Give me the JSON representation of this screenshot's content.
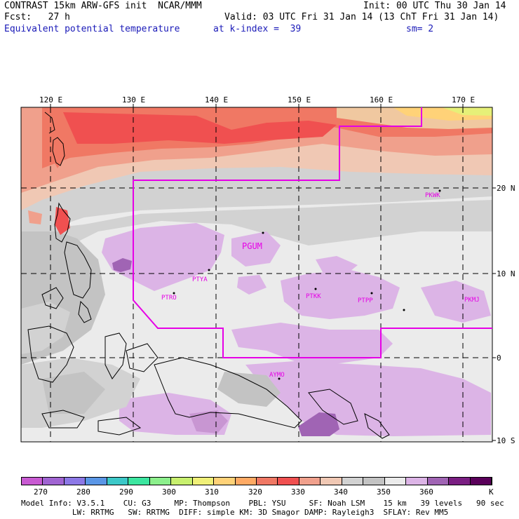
{
  "header": {
    "line1_left": "CONTRAST 15km ARW-GFS init  NCAR/MMM",
    "line1_right": "Init: 00 UTC Thu 30 Jan 14",
    "line2_left": "Fcst:   27 h",
    "line2_right": "Valid: 03 UTC Fri 31 Jan 14 (13 ChT Fri 31 Jan 14)",
    "field_name": "Equivalent potential temperature",
    "level": "at k-index =  39",
    "smoothing": "sm= 2"
  },
  "axes": {
    "lon_labels": [
      "120 E",
      "130 E",
      "140 E",
      "150 E",
      "160 E",
      "170 E"
    ],
    "lat_labels": [
      "20 N",
      "10 N",
      "0",
      "10 S"
    ]
  },
  "stations": [
    "PKWK",
    "PGUM",
    "PTYA",
    "PTRO",
    "PTKK",
    "PTPP",
    "PKMJ",
    "AYMO"
  ],
  "colorbar": {
    "labels": [
      "270",
      "280",
      "290",
      "300",
      "310",
      "320",
      "330",
      "340",
      "350",
      "360"
    ],
    "unit": "K",
    "colors": [
      "#c85ad2",
      "#a064d2",
      "#8c78e6",
      "#5a96e6",
      "#3cc8c8",
      "#3ce6a0",
      "#8cf08c",
      "#c8f06e",
      "#f0f078",
      "#ffd278",
      "#ffaa64",
      "#f07864",
      "#f05050",
      "#f0a08c",
      "#f0c8b4",
      "#d2d2d2",
      "#c3c3c3",
      "#ebebeb",
      "#dcb4e6",
      "#a064b4",
      "#7a1e82",
      "#5a005a"
    ]
  },
  "footer": {
    "line1": "Model Info: V3.5.1    CU: G3     MP: Thompson    PBL: YSU     SF: Noah LSM    15 km   39 levels   90 sec",
    "line2": "           LW: RRTMG   SW: RRTMG  DIFF: simple KM: 3D Smagor DAMP: Rayleigh3  SFLAY: Rev MM5"
  }
}
